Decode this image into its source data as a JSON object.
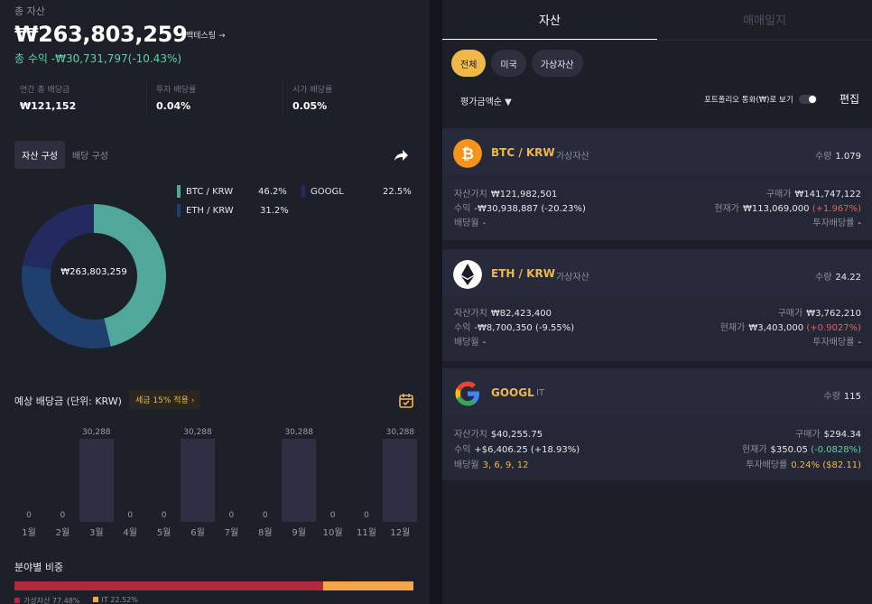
{
  "summary": {
    "total_label": "총 자산",
    "total_value": "₩263,803,259",
    "backtest_label": "백테스팅 →",
    "profit_text": "총 수익 -₩30,731,797(-10.43%)"
  },
  "stats": [
    {
      "label": "연간 총 배당금",
      "value": "₩121,152"
    },
    {
      "label": "투자 배당률",
      "value": "0.04%"
    },
    {
      "label": "시가 배당률",
      "value": "0.05%"
    }
  ],
  "composition": {
    "tabs": [
      "자산 구성",
      "배당 구성"
    ],
    "center_text": "₩263,803,259",
    "legend": [
      {
        "name": "BTC / KRW",
        "pct": "46.2%",
        "color": "#4fa89a",
        "value": 46.2
      },
      {
        "name": "ETH / KRW",
        "pct": "31.2%",
        "color": "#1f3f6e",
        "value": 31.2
      },
      {
        "name": "GOOGL",
        "pct": "22.5%",
        "color": "#232a5e",
        "value": 22.5
      }
    ]
  },
  "dividend": {
    "title": "예상 배당금 (단위: KRW)",
    "tax_badge": "세금 15% 적용 ›",
    "months": [
      {
        "label": "1월",
        "value": "0",
        "amount": 0
      },
      {
        "label": "2월",
        "value": "0",
        "amount": 0
      },
      {
        "label": "3월",
        "value": "30,288",
        "amount": 30288
      },
      {
        "label": "4월",
        "value": "0",
        "amount": 0
      },
      {
        "label": "5월",
        "value": "0",
        "amount": 0
      },
      {
        "label": "6월",
        "value": "30,288",
        "amount": 30288
      },
      {
        "label": "7월",
        "value": "0",
        "amount": 0
      },
      {
        "label": "8월",
        "value": "0",
        "amount": 0
      },
      {
        "label": "9월",
        "value": "30,288",
        "amount": 30288
      },
      {
        "label": "10월",
        "value": "0",
        "amount": 0
      },
      {
        "label": "11월",
        "value": "0",
        "amount": 0
      },
      {
        "label": "12월",
        "value": "30,288",
        "amount": 30288
      }
    ]
  },
  "sector": {
    "title": "분야별 비중",
    "items": [
      {
        "label": "가상자산 77.48%",
        "value": 77.48,
        "color": "#b3283f"
      },
      {
        "label": "IT 22.52%",
        "value": 22.52,
        "color": "#f0a848"
      }
    ]
  },
  "right": {
    "tabs": [
      "자산",
      "매매일지"
    ],
    "filters": [
      "전체",
      "미국",
      "가상자산"
    ],
    "sort_label": "평가금액순 ▼",
    "portfolio_label": "포트폴리오 통화(₩)로 보기",
    "edit_label": "편집",
    "cards": [
      {
        "name": "BTC / KRW",
        "category": "가상자산",
        "qty_label": "수량",
        "qty": "1.079",
        "asset_label": "자산가치",
        "asset_value": "₩121,982,501",
        "profit_label": "수익",
        "profit_value": "-₩30,938,887 (-20.23%)",
        "div_month_label": "배당월",
        "div_month_value": "-",
        "buy_label": "구매가",
        "buy_value": "₩141,747,122",
        "now_label": "현재가",
        "now_value": "₩113,069,000",
        "now_change": "(+1.967%)",
        "yield_label": "투자배당률",
        "yield_value": "-"
      },
      {
        "name": "ETH / KRW",
        "category": "가상자산",
        "qty_label": "수량",
        "qty": "24.22",
        "asset_label": "자산가치",
        "asset_value": "₩82,423,400",
        "profit_label": "수익",
        "profit_value": "-₩8,700,350 (-9.55%)",
        "div_month_label": "배당월",
        "div_month_value": "-",
        "buy_label": "구매가",
        "buy_value": "₩3,762,210",
        "now_label": "현재가",
        "now_value": "₩3,403,000",
        "now_change": "(+0.9027%)",
        "yield_label": "투자배당률",
        "yield_value": "-"
      },
      {
        "name": "GOOGL",
        "category": "IT",
        "qty_label": "수량",
        "qty": "115",
        "asset_label": "자산가치",
        "asset_value": "$40,255.75",
        "profit_label": "수익",
        "profit_value": "+$6,406.25 (+18.93%)",
        "div_month_label": "배당월",
        "div_month_value": "3, 6, 9, 12",
        "buy_label": "구매가",
        "buy_value": "$294.34",
        "now_label": "현재가",
        "now_value": "$350.05",
        "now_change": "(-0.0828%)",
        "yield_label": "투자배당률",
        "yield_value": "0.24% ($82.11)"
      }
    ]
  }
}
